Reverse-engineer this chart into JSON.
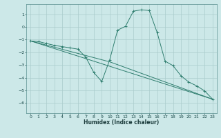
{
  "xlabel": "Humidex (Indice chaleur)",
  "background_color": "#cce8e8",
  "grid_color": "#aacccc",
  "line_color": "#2e7d6e",
  "xlim": [
    -0.5,
    23.5
  ],
  "ylim": [
    -6.8,
    1.8
  ],
  "yticks": [
    -6,
    -5,
    -4,
    -3,
    -2,
    -1,
    0,
    1
  ],
  "xticks": [
    0,
    1,
    2,
    3,
    4,
    5,
    6,
    7,
    8,
    9,
    10,
    11,
    12,
    13,
    14,
    15,
    16,
    17,
    18,
    19,
    20,
    21,
    22,
    23
  ],
  "line1_x": [
    0,
    1,
    2,
    3,
    4,
    5,
    6,
    7,
    8,
    9,
    10,
    11,
    12,
    13,
    14,
    15,
    16,
    17,
    18,
    19,
    20,
    21,
    22,
    23
  ],
  "line1_y": [
    -1.1,
    -1.15,
    -1.3,
    -1.45,
    -1.55,
    -1.65,
    -1.75,
    -2.4,
    -3.6,
    -4.3,
    -2.6,
    -0.25,
    0.05,
    1.25,
    1.35,
    1.3,
    -0.45,
    -2.7,
    -3.05,
    -3.85,
    -4.35,
    -4.65,
    -5.05,
    -5.7
  ],
  "line2_x": [
    0,
    23
  ],
  "line2_y": [
    -1.1,
    -5.7
  ],
  "line3_x": [
    0,
    10,
    23
  ],
  "line3_y": [
    -1.1,
    -2.75,
    -5.7
  ]
}
